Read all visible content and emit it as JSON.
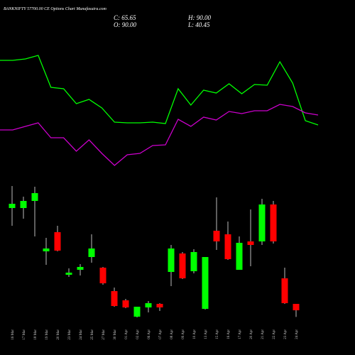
{
  "chart_data": {
    "type": "candlestick",
    "title": "BANKNIFTY 57700.00  CE Options  Chart Munafasutra.com",
    "summary": [
      "C: 65.65",
      "H: 90.00",
      "O: 90.00",
      "L: 40.45"
    ],
    "categories": [
      "16 Mar",
      "17 Mar",
      "18 Mar",
      "19 Mar",
      "20 Mar",
      "23 Mar",
      "24 Mar",
      "25 Mar",
      "27 Mar",
      "30 Mar",
      "01 Apr",
      "02 Apr",
      "06 Apr",
      "07 Apr",
      "08 Apr",
      "09 Apr",
      "10 Apr",
      "13 Apr",
      "15 Apr",
      "16 Apr",
      "17 Apr",
      "20 Apr",
      "21 Apr",
      "22 Apr",
      "23 Apr",
      "24 Apr"
    ],
    "open": [
      454.5,
      454.5,
      481.5,
      289.8,
      362.7,
      200.7,
      219.6,
      268.2,
      227.7,
      138.6,
      103.5,
      41.4,
      76.5,
      90,
      211.5,
      281.7,
      214.2,
      71.1,
      368.1,
      354.6,
      219.6,
      327.6,
      327.6,
      468,
      187.2,
      90
    ],
    "high": [
      538.2,
      497.7,
      535.5,
      341.1,
      387,
      225,
      241.2,
      354.6,
      230.4,
      152.1,
      108.9,
      79.2,
      100.8,
      92.7,
      314.1,
      287.1,
      297.9,
      268.2,
      495,
      403.2,
      346.5,
      449.1,
      489.6,
      481.5,
      227.7,
      90
    ],
    "low": [
      387,
      414,
      346.5,
      238.5,
      289.8,
      192.6,
      198,
      246.6,
      162.9,
      79.2,
      73.8,
      38.7,
      57.6,
      63,
      157.5,
      184.5,
      206.1,
      68.4,
      295.2,
      257.4,
      219.6,
      233.1,
      314.1,
      319.5,
      90,
      40.45
    ],
    "close": [
      470.7,
      481.5,
      511.2,
      300.6,
      292.5,
      208.8,
      230.4,
      300.6,
      168.3,
      81.9,
      76.5,
      79.2,
      92.7,
      76.5,
      300.6,
      187.2,
      287.1,
      268.2,
      327.6,
      260.1,
      322.2,
      314.1,
      468,
      327.6,
      92.7,
      65.65
    ],
    "up_color": "#00ff00",
    "down_color": "#ff0000",
    "lines": [
      {
        "color": "#00ff00",
        "values": [
          165,
          165,
          167,
          172,
          127,
          125,
          104,
          110,
          98,
          78,
          77,
          77,
          78,
          76,
          125,
          102,
          123,
          119,
          132,
          118,
          131,
          130,
          163,
          133,
          80,
          74
        ]
      },
      {
        "color": "#cc00cc",
        "values": [
          67,
          67,
          72,
          77,
          56,
          56,
          37,
          53,
          34,
          17,
          32,
          34,
          45,
          46,
          82,
          72,
          85,
          81,
          93,
          90,
          94,
          94,
          103,
          100,
          91,
          88
        ]
      }
    ]
  }
}
